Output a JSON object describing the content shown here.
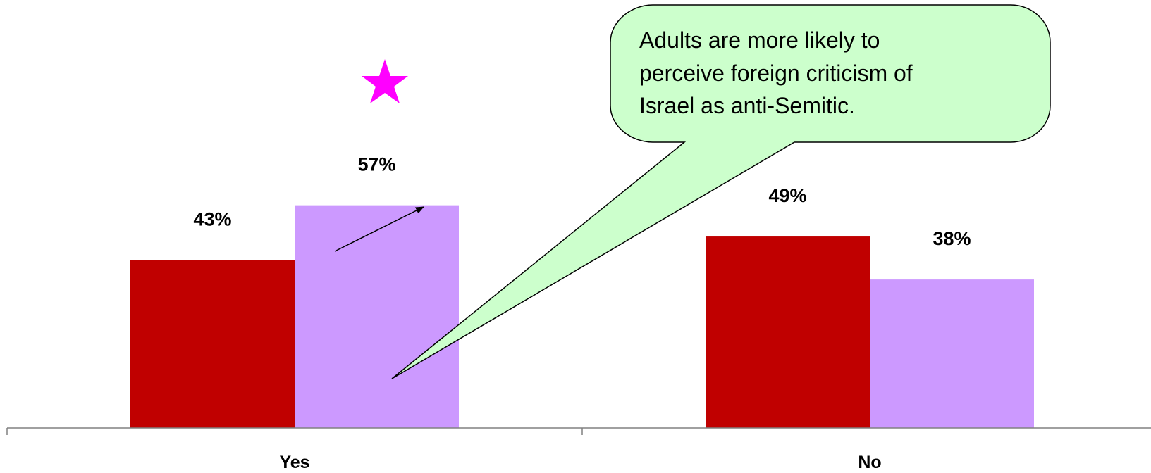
{
  "chart_data": {
    "type": "bar",
    "categories": [
      "Yes",
      "No"
    ],
    "series": [
      {
        "color": "#c00000",
        "values": [
          43,
          49
        ],
        "labels": [
          "43%",
          "49%"
        ]
      },
      {
        "color": "#cc99ff",
        "values": [
          57,
          38
        ],
        "labels": [
          "57%",
          "38%"
        ]
      }
    ],
    "ylim": [
      0,
      100
    ],
    "grid": false,
    "legend": "none"
  },
  "annotation": {
    "lines": [
      "Adults are more likely to",
      "perceive foreign criticism of",
      "Israel as anti-Semitic."
    ],
    "fill": "#ccffcc"
  },
  "star": {
    "color": "#ff00ff"
  }
}
